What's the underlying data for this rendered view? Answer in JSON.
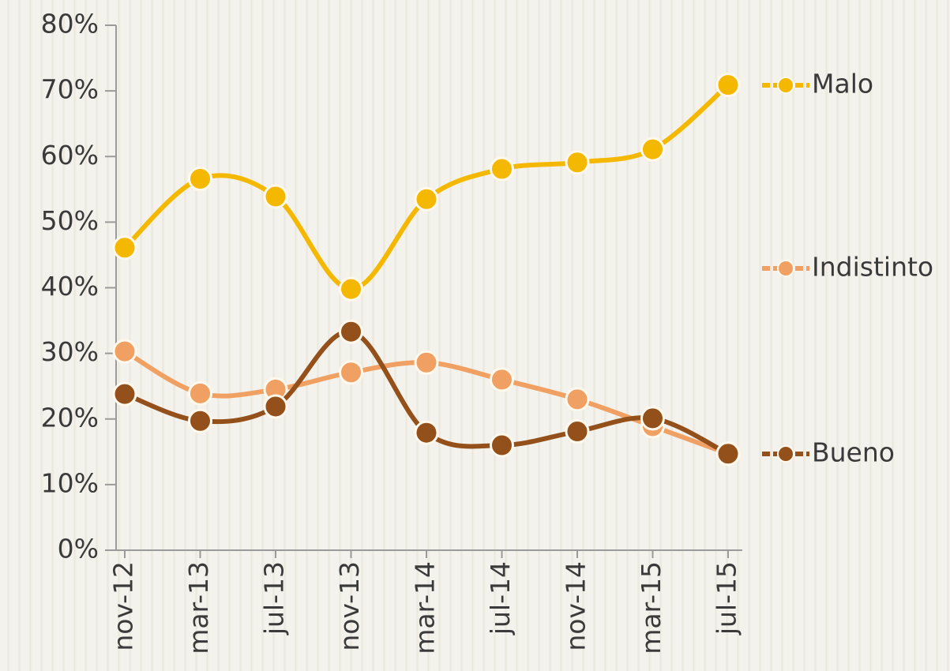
{
  "chart_data": {
    "type": "line",
    "categories": [
      "nov-12",
      "mar-13",
      "jul-13",
      "nov-13",
      "mar-14",
      "jul-14",
      "nov-14",
      "mar-15",
      "jul-15"
    ],
    "series": [
      {
        "name": "Malo",
        "color": "#f5b800",
        "values": [
          46.1,
          56.6,
          53.9,
          39.8,
          53.5,
          58.1,
          59.1,
          61.1,
          70.9
        ]
      },
      {
        "name": "Indistinto",
        "color": "#f0a063",
        "values": [
          30.3,
          23.9,
          24.5,
          27.1,
          28.6,
          26,
          23,
          18.9,
          14.7
        ]
      },
      {
        "name": "Bueno",
        "color": "#94501a",
        "values": [
          23.8,
          19.7,
          21.9,
          33.3,
          17.9,
          16,
          18.1,
          20.1,
          14.7
        ]
      }
    ],
    "ylim": [
      0,
      80
    ],
    "yticks": [
      {
        "value": 0,
        "label": "0%"
      },
      {
        "value": 10,
        "label": "10%"
      },
      {
        "value": 20,
        "label": "20%"
      },
      {
        "value": 30,
        "label": "30%"
      },
      {
        "value": 40,
        "label": "40%"
      },
      {
        "value": 50,
        "label": "50%"
      },
      {
        "value": 60,
        "label": "60%"
      },
      {
        "value": 70,
        "label": "70%"
      },
      {
        "value": 80,
        "label": "80%"
      }
    ],
    "smooth": true,
    "legend": "right"
  }
}
